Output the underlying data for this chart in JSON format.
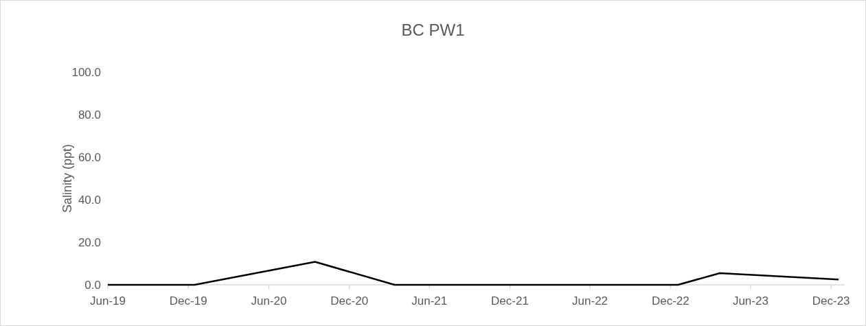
{
  "chart_data": {
    "type": "line",
    "title": "BC PW1",
    "ylabel": "Salinity (ppt)",
    "x": [
      "2019-06-01",
      "2019-12-15",
      "2020-09-14",
      "2021-03-14",
      "2022-12-18",
      "2023-03-23",
      "2023-12-18"
    ],
    "series": [
      {
        "color": "#000000",
        "values": [
          0,
          0,
          10.8,
          0,
          0,
          5.5,
          2.5
        ]
      }
    ],
    "xlim": [
      "2019-06-01",
      "2024-01-01"
    ],
    "xticks": [
      {
        "value": "2019-06-01",
        "label": "Jun-19"
      },
      {
        "value": "2019-12-01",
        "label": "Dec-19"
      },
      {
        "value": "2020-06-01",
        "label": "Jun-20"
      },
      {
        "value": "2020-12-01",
        "label": "Dec-20"
      },
      {
        "value": "2021-06-01",
        "label": "Jun-21"
      },
      {
        "value": "2021-12-01",
        "label": "Dec-21"
      },
      {
        "value": "2022-06-01",
        "label": "Jun-22"
      },
      {
        "value": "2022-12-01",
        "label": "Dec-22"
      },
      {
        "value": "2023-06-01",
        "label": "Jun-23"
      },
      {
        "value": "2023-12-01",
        "label": "Dec-23"
      }
    ],
    "ylim": [
      0,
      100
    ],
    "yticks": [
      {
        "value": 0,
        "label": "0.0"
      },
      {
        "value": 20,
        "label": "20.0"
      },
      {
        "value": 40,
        "label": "40.0"
      },
      {
        "value": 60,
        "label": "60.0"
      },
      {
        "value": 80,
        "label": "80.0"
      },
      {
        "value": 100,
        "label": "100.0"
      }
    ],
    "grid": false,
    "marker": "none",
    "line_style": "solid"
  }
}
